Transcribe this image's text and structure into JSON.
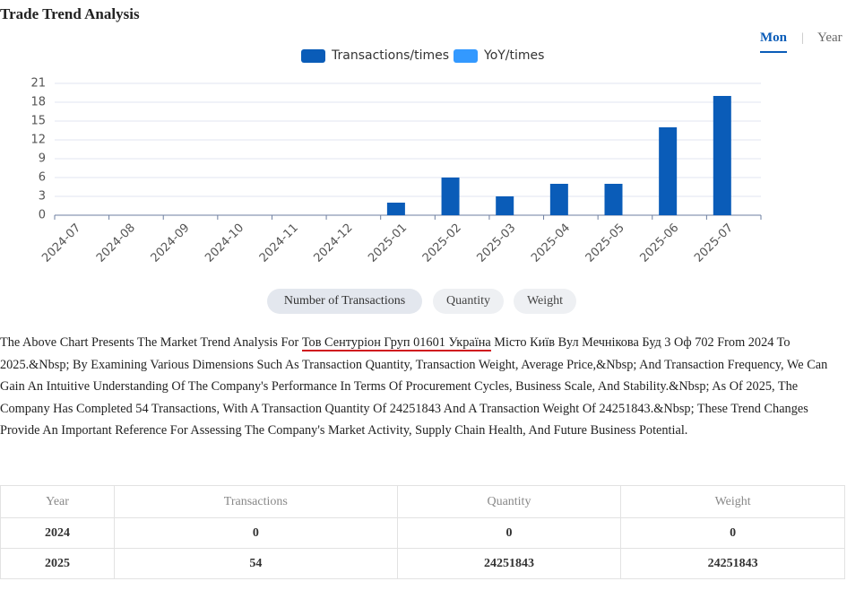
{
  "title": "Trade Trend Analysis",
  "tabs": [
    "Mon",
    "Year"
  ],
  "chart_data": {
    "type": "bar",
    "categories": [
      "2024-07",
      "2024-08",
      "2024-09",
      "2024-10",
      "2024-11",
      "2024-12",
      "2025-01",
      "2025-02",
      "2025-03",
      "2025-04",
      "2025-05",
      "2025-06",
      "2025-07"
    ],
    "series": [
      {
        "name": "Transactions/times",
        "color": "#0a5cb8",
        "values": [
          0,
          0,
          0,
          0,
          0,
          0,
          2,
          6,
          3,
          5,
          5,
          14,
          19
        ]
      },
      {
        "name": "YoY/times",
        "color": "#3399ff",
        "values": [
          null,
          null,
          null,
          null,
          null,
          null,
          null,
          null,
          null,
          null,
          null,
          null,
          null
        ]
      }
    ],
    "ylim": [
      0,
      21
    ],
    "yticks": [
      0,
      3,
      6,
      9,
      12,
      15,
      18,
      21
    ],
    "grid": true
  },
  "buttons": [
    "Number of Transactions",
    "Quantity",
    "Weight"
  ],
  "paragraph": [
    "The Above Chart Presents The Market Trend Analysis For ",
    "Тов Сентуріон Груп 01601 Україна",
    " Місто Київ Вул Мечнікова Буд 3 Оф 702 From 2024 To 2025.&Nbsp; By Examining Various Dimensions Such As Transaction Quantity, Transaction Weight, Average Price,&Nbsp; And Transaction Frequency, We Can Gain An Intuitive Understanding Of The Company's Performance In Terms Of Procurement Cycles, Business Scale, And Stability.&Nbsp; As Of 2025, The Company Has Completed 54 Transactions, With A Transaction Quantity Of 24251843 And A Transaction Weight Of 24251843.&Nbsp; These Trend Changes Provide An Important Reference For Assessing The Company's Market Activity, Supply Chain Health, And Future Business Potential."
  ],
  "table": {
    "header": [
      "Year",
      "Transactions",
      "Quantity",
      "Weight"
    ],
    "rows": [
      [
        "2024",
        "0",
        "0",
        "0"
      ],
      [
        "2025",
        "54",
        "24251843",
        "24251843"
      ]
    ]
  }
}
